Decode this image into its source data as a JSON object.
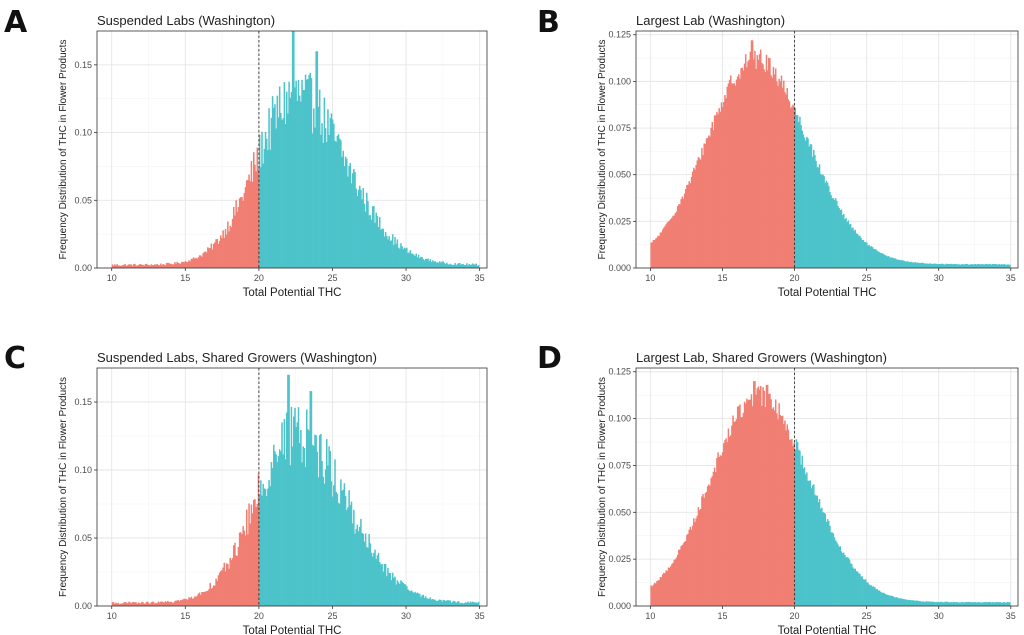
{
  "chart_data": [
    {
      "panel": "A",
      "type": "bar",
      "title": "Suspended Labs (Washington)",
      "xlabel": "Total Potential THC",
      "ylabel": "Frequency Distribution of THC in Flower Products",
      "xlim": [
        9,
        35.5
      ],
      "ylim": [
        0,
        0.175
      ],
      "xticks": [
        "10",
        "15",
        "20",
        "25",
        "30",
        "35"
      ],
      "yticks": [
        "0.00",
        "0.05",
        "0.10",
        "0.15"
      ],
      "threshold": 20,
      "grid": true,
      "distribution": {
        "mode": 22.5,
        "peak": 0.125,
        "sd_left": 2.7,
        "sd_right": 3.4,
        "edge": 0.18,
        "spikes": [
          [
            22.3,
            0.175
          ],
          [
            23.9,
            0.16
          ]
        ]
      },
      "colors": {
        "below": "#F07E72",
        "above": "#4DC3CA"
      }
    },
    {
      "panel": "B",
      "type": "bar",
      "title": "Largest Lab (Washington)",
      "xlabel": "Total Potential THC",
      "ylabel": "Frequency Distribution of THC in Flower Products",
      "xlim": [
        9,
        35.5
      ],
      "ylim": [
        0,
        0.127
      ],
      "xticks": [
        "10",
        "15",
        "20",
        "25",
        "30",
        "35"
      ],
      "yticks": [
        "0.000",
        "0.025",
        "0.050",
        "0.075",
        "0.100",
        "0.125"
      ],
      "threshold": 20,
      "grid": true,
      "distribution": {
        "mode": 17.3,
        "peak": 0.11,
        "sd_left": 3.4,
        "sd_right": 3.6,
        "edge": 0.05,
        "spikes": [
          [
            17.0,
            0.122
          ]
        ]
      },
      "colors": {
        "below": "#F07E72",
        "above": "#4DC3CA"
      }
    },
    {
      "panel": "C",
      "type": "bar",
      "title": "Suspended Labs, Shared Growers (Washington)",
      "xlabel": "Total Potential THC",
      "ylabel": "Frequency Distribution of THC in Flower Products",
      "xlim": [
        9,
        35.5
      ],
      "ylim": [
        0,
        0.175
      ],
      "xticks": [
        "10",
        "15",
        "20",
        "25",
        "30",
        "35"
      ],
      "yticks": [
        "0.00",
        "0.05",
        "0.10",
        "0.15"
      ],
      "threshold": 20,
      "grid": true,
      "distribution": {
        "mode": 22.5,
        "peak": 0.125,
        "sd_left": 2.7,
        "sd_right": 3.4,
        "edge": 0.18,
        "spikes": [
          [
            22.0,
            0.17
          ],
          [
            23.5,
            0.158
          ]
        ]
      },
      "colors": {
        "below": "#F07E72",
        "above": "#4DC3CA"
      }
    },
    {
      "panel": "D",
      "type": "bar",
      "title": "Largest Lab, Shared Growers (Washington)",
      "xlabel": "Total Potential THC",
      "ylabel": "Frequency Distribution of THC in Flower Products",
      "xlim": [
        9,
        35.5
      ],
      "ylim": [
        0,
        0.127
      ],
      "xticks": [
        "10",
        "15",
        "20",
        "25",
        "30",
        "35"
      ],
      "yticks": [
        "0.000",
        "0.025",
        "0.050",
        "0.075",
        "0.100",
        "0.125"
      ],
      "threshold": 20,
      "grid": true,
      "distribution": {
        "mode": 17.5,
        "peak": 0.11,
        "sd_left": 3.3,
        "sd_right": 3.5,
        "edge": 0.05,
        "spikes": [
          [
            17.2,
            0.12
          ],
          [
            18.1,
            0.118
          ]
        ]
      },
      "colors": {
        "below": "#F07E72",
        "above": "#4DC3CA"
      }
    }
  ]
}
